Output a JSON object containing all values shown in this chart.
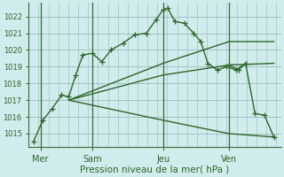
{
  "background_color": "#d0ecec",
  "grid_color": "#99bbbb",
  "line_color": "#2d6628",
  "vline_color": "#3a6b3a",
  "xlabel": "Pression niveau de la mer( hPa )",
  "ylim": [
    1014.2,
    1022.8
  ],
  "yticks": [
    1015,
    1016,
    1017,
    1018,
    1019,
    1020,
    1021,
    1022
  ],
  "xlim": [
    -0.2,
    10.5
  ],
  "day_positions": [
    0.3,
    2.5,
    5.5,
    8.3
  ],
  "day_labels": [
    "Mer",
    "Sam",
    "Jeu",
    "Ven"
  ],
  "vline_positions": [
    0.3,
    2.5,
    5.5,
    8.3
  ],
  "main_line": {
    "x": [
      0.0,
      0.4,
      0.8,
      1.2,
      1.5,
      1.8,
      2.1,
      2.5,
      2.9,
      3.3,
      3.8,
      4.3,
      4.8,
      5.2,
      5.5,
      5.7,
      6.0,
      6.4,
      6.8,
      7.1,
      7.4,
      7.8,
      8.2,
      8.6,
      9.0
    ],
    "y": [
      1014.5,
      1015.8,
      1016.5,
      1017.3,
      1017.2,
      1018.5,
      1019.7,
      1019.8,
      1019.3,
      1020.0,
      1020.4,
      1020.9,
      1021.0,
      1021.8,
      1022.4,
      1022.5,
      1021.7,
      1021.6,
      1021.0,
      1020.5,
      1019.2,
      1018.8,
      1019.0,
      1018.8,
      1019.2
    ]
  },
  "fan_line_high": {
    "x": [
      1.5,
      5.5,
      8.3,
      10.2
    ],
    "y": [
      1017.0,
      1019.2,
      1020.5,
      1020.5
    ]
  },
  "fan_line_mid": {
    "x": [
      1.5,
      5.5,
      8.3,
      10.2
    ],
    "y": [
      1017.0,
      1018.5,
      1019.1,
      1019.2
    ]
  },
  "fan_line_low": {
    "x": [
      1.5,
      5.5,
      8.3,
      10.2
    ],
    "y": [
      1017.0,
      1015.8,
      1015.0,
      1014.8
    ]
  },
  "tail_line": {
    "x": [
      8.3,
      8.7,
      9.0,
      9.4,
      9.8,
      10.2
    ],
    "y": [
      1019.1,
      1018.8,
      1019.2,
      1016.2,
      1016.1,
      1014.8
    ]
  }
}
